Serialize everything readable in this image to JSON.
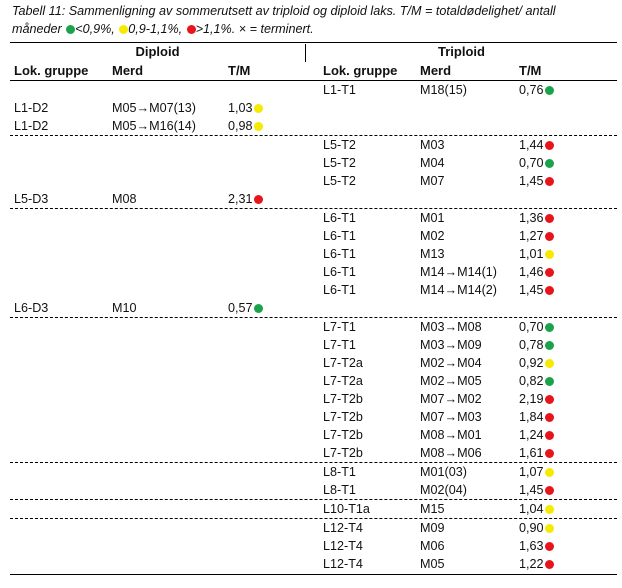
{
  "caption": {
    "line1": "Tabell 11: Sammenligning av sommerutsett av triploid og diploid laks. T/M = totaldødelighet/ antall",
    "line2_prefix": "måneder ",
    "legend": [
      {
        "label": "<0,9%,",
        "color": "#1aa34a"
      },
      {
        "label": "0,9-1,1%,",
        "color": "#f5ea00"
      },
      {
        "label": ">1,1%.",
        "color": "#e8141c"
      }
    ],
    "terminated": " × = terminert."
  },
  "groups": {
    "diploid": "Diploid",
    "triploid": "Triploid"
  },
  "headers": {
    "lok": "Lok. gruppe",
    "merd": "Merd",
    "tm": "T/M"
  },
  "colors": {
    "green": "#1aa34a",
    "yellow": "#f5ea00",
    "red": "#e8141c"
  },
  "rows": [
    {
      "d": null,
      "t": [
        "L1-T1",
        "M18(15)",
        "0,76",
        "green"
      ],
      "dash": false
    },
    {
      "d": [
        "L1-D2",
        "M05→M07(13)",
        "1,03",
        "yellow"
      ],
      "t": null,
      "dash": false
    },
    {
      "d": [
        "L1-D2",
        "M05→M16(14)",
        "0,98",
        "yellow"
      ],
      "t": null,
      "dash": true
    },
    {
      "d": null,
      "t": [
        "L5-T2",
        "M03",
        "1,44",
        "red"
      ],
      "dash": false
    },
    {
      "d": null,
      "t": [
        "L5-T2",
        "M04",
        "0,70",
        "green"
      ],
      "dash": false
    },
    {
      "d": null,
      "t": [
        "L5-T2",
        "M07",
        "1,45",
        "red"
      ],
      "dash": false
    },
    {
      "d": [
        "L5-D3",
        "M08",
        "2,31",
        "red"
      ],
      "t": null,
      "dash": true
    },
    {
      "d": null,
      "t": [
        "L6-T1",
        "M01",
        "1,36",
        "red"
      ],
      "dash": false
    },
    {
      "d": null,
      "t": [
        "L6-T1",
        "M02",
        "1,27",
        "red"
      ],
      "dash": false
    },
    {
      "d": null,
      "t": [
        "L6-T1",
        "M13",
        "1,01",
        "yellow"
      ],
      "dash": false
    },
    {
      "d": null,
      "t": [
        "L6-T1",
        "M14→M14(1)",
        "1,46",
        "red"
      ],
      "dash": false
    },
    {
      "d": null,
      "t": [
        "L6-T1",
        "M14→M14(2)",
        "1,45",
        "red"
      ],
      "dash": false
    },
    {
      "d": [
        "L6-D3",
        "M10",
        "0,57",
        "green"
      ],
      "t": null,
      "dash": true
    },
    {
      "d": null,
      "t": [
        "L7-T1",
        "M03→M08",
        "0,70",
        "green"
      ],
      "dash": false
    },
    {
      "d": null,
      "t": [
        "L7-T1",
        "M03→M09",
        "0,78",
        "green"
      ],
      "dash": false
    },
    {
      "d": null,
      "t": [
        "L7-T2a",
        "M02→M04",
        "0,92",
        "yellow"
      ],
      "dash": false
    },
    {
      "d": null,
      "t": [
        "L7-T2a",
        "M02→M05",
        "0,82",
        "green"
      ],
      "dash": false
    },
    {
      "d": null,
      "t": [
        "L7-T2b",
        "M07→M02",
        "2,19",
        "red"
      ],
      "dash": false
    },
    {
      "d": null,
      "t": [
        "L7-T2b",
        "M07→M03",
        "1,84",
        "red"
      ],
      "dash": false
    },
    {
      "d": null,
      "t": [
        "L7-T2b",
        "M08→M01",
        "1,24",
        "red"
      ],
      "dash": false
    },
    {
      "d": null,
      "t": [
        "L7-T2b",
        "M08→M06",
        "1,61",
        "red"
      ],
      "dash": true
    },
    {
      "d": null,
      "t": [
        "L8-T1",
        "M01(03)",
        "1,07",
        "yellow"
      ],
      "dash": false
    },
    {
      "d": null,
      "t": [
        "L8-T1",
        "M02(04)",
        "1,45",
        "red"
      ],
      "dash": true
    },
    {
      "d": null,
      "t": [
        "L10-T1a",
        "M15",
        "1,04",
        "yellow"
      ],
      "dash": true
    },
    {
      "d": null,
      "t": [
        "L12-T4",
        "M09",
        "0,90",
        "yellow"
      ],
      "dash": false
    },
    {
      "d": null,
      "t": [
        "L12-T4",
        "M06",
        "1,63",
        "red"
      ],
      "dash": false
    },
    {
      "d": null,
      "t": [
        "L12-T4",
        "M05",
        "1,22",
        "red"
      ],
      "dash": false
    }
  ]
}
